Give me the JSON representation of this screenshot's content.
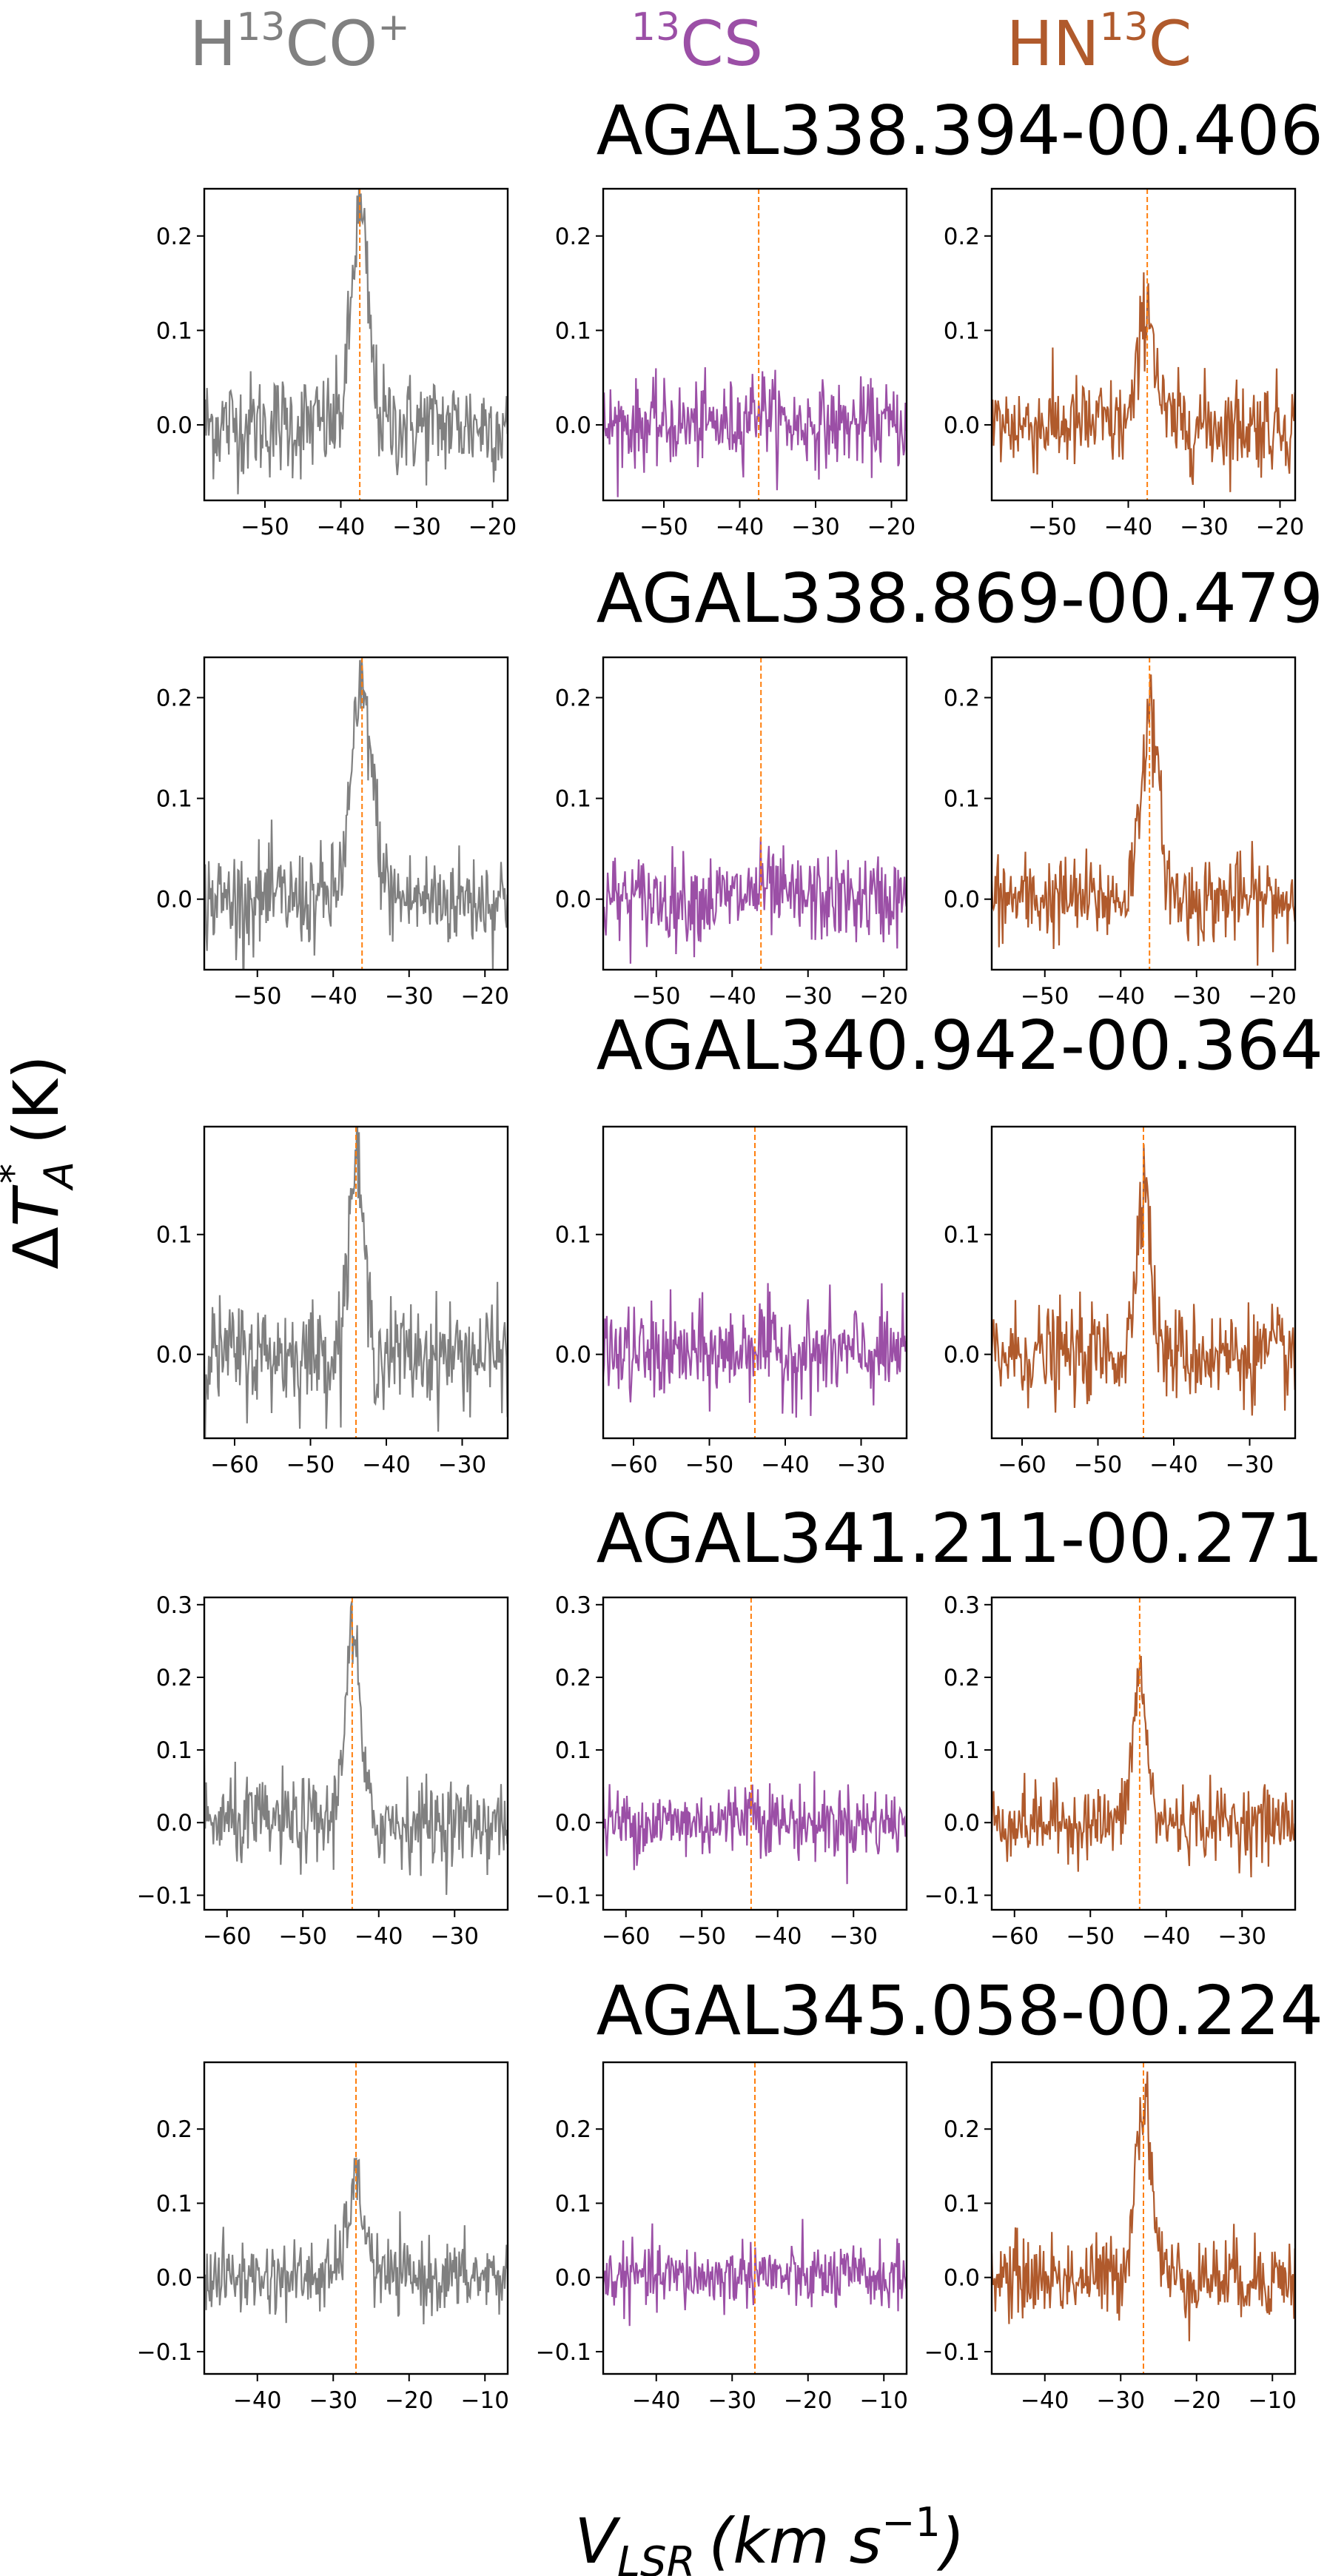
{
  "columns": [
    {
      "base": "H",
      "sup": "13",
      "rest": "CO",
      "sup2": "+",
      "color": "#808080"
    },
    {
      "base": "",
      "sup": "13",
      "rest": "CS",
      "sup2": "",
      "color": "#9b4fa6"
    },
    {
      "base": "HN",
      "sup": "13",
      "rest": "C",
      "sup2": "",
      "color": "#b05a2c"
    }
  ],
  "ylabel": {
    "delta": "Δ",
    "T": "T",
    "sub": "A",
    "sup": "*",
    "unit": "(K)"
  },
  "xlabel": {
    "V": "V",
    "sub": "LSR",
    "unit_open": "(km s",
    "sup": "−1",
    "unit_close": ")"
  },
  "vline_color": "#ff7f0e",
  "chart_data": [
    {
      "type": "line",
      "source": "AGAL338.394-00.406",
      "v_center": -37.5,
      "xlim": [
        -58,
        -18
      ],
      "ylim": [
        -0.08,
        0.25
      ],
      "xticks": [
        -50,
        -40,
        -30,
        -20
      ],
      "xtick_labels": [
        "−50",
        "−40",
        "−30",
        "−20"
      ],
      "yticks": [
        0.0,
        0.1,
        0.2
      ],
      "ytick_labels": [
        "0.0",
        "0.1",
        "0.2"
      ],
      "series": [
        {
          "peak": 0.22,
          "width": 1.1,
          "noise": 0.028,
          "color": "#808080"
        },
        {
          "peak": 0.02,
          "width": 1.5,
          "noise": 0.022,
          "color": "#9b4fa6"
        },
        {
          "peak": 0.13,
          "width": 1.0,
          "noise": 0.025,
          "color": "#b05a2c"
        }
      ]
    },
    {
      "type": "line",
      "source": "AGAL338.869-00.479",
      "v_center": -36.2,
      "xlim": [
        -57,
        -17
      ],
      "ylim": [
        -0.07,
        0.24
      ],
      "xticks": [
        -50,
        -40,
        -30,
        -20
      ],
      "xtick_labels": [
        "−50",
        "−40",
        "−30",
        "−20"
      ],
      "yticks": [
        0.0,
        0.1,
        0.2
      ],
      "ytick_labels": [
        "0.0",
        "0.1",
        "0.2"
      ],
      "series": [
        {
          "peak": 0.2,
          "width": 1.4,
          "noise": 0.025,
          "color": "#808080"
        },
        {
          "peak": 0.01,
          "width": 1.5,
          "noise": 0.022,
          "color": "#9b4fa6"
        },
        {
          "peak": 0.18,
          "width": 1.2,
          "noise": 0.022,
          "color": "#b05a2c"
        }
      ]
    },
    {
      "type": "line",
      "source": "AGAL340.942-00.364",
      "v_center": -44.0,
      "xlim": [
        -64,
        -24
      ],
      "ylim": [
        -0.07,
        0.19
      ],
      "xticks": [
        -60,
        -50,
        -40,
        -30
      ],
      "xtick_labels": [
        "−60",
        "−50",
        "−40",
        "−30"
      ],
      "yticks": [
        0.0,
        0.1
      ],
      "ytick_labels": [
        "0.0",
        "0.1"
      ],
      "series": [
        {
          "peak": 0.16,
          "width": 1.0,
          "noise": 0.022,
          "color": "#808080"
        },
        {
          "peak": 0.01,
          "width": 1.5,
          "noise": 0.02,
          "color": "#9b4fa6"
        },
        {
          "peak": 0.15,
          "width": 0.9,
          "noise": 0.02,
          "color": "#b05a2c"
        }
      ]
    },
    {
      "type": "line",
      "source": "AGAL341.211-00.271",
      "v_center": -43.5,
      "xlim": [
        -63,
        -23
      ],
      "ylim": [
        -0.12,
        0.31
      ],
      "xticks": [
        -60,
        -50,
        -40,
        -30
      ],
      "xtick_labels": [
        "−60",
        "−50",
        "−40",
        "−30"
      ],
      "yticks": [
        -0.1,
        0.0,
        0.1,
        0.2,
        0.3
      ],
      "ytick_labels": [
        "−0.1",
        "0.0",
        "0.1",
        "0.2",
        "0.3"
      ],
      "series": [
        {
          "peak": 0.26,
          "width": 1.0,
          "noise": 0.03,
          "color": "#808080"
        },
        {
          "peak": 0.02,
          "width": 1.5,
          "noise": 0.025,
          "color": "#9b4fa6"
        },
        {
          "peak": 0.2,
          "width": 0.9,
          "noise": 0.025,
          "color": "#b05a2c"
        }
      ]
    },
    {
      "type": "line",
      "source": "AGAL345.058-00.224",
      "v_center": -27.0,
      "xlim": [
        -47,
        -7
      ],
      "ylim": [
        -0.13,
        0.29
      ],
      "xticks": [
        -40,
        -30,
        -20,
        -10
      ],
      "xtick_labels": [
        "−40",
        "−30",
        "−20",
        "−10"
      ],
      "yticks": [
        -0.1,
        0.0,
        0.1,
        0.2
      ],
      "ytick_labels": [
        "−0.1",
        "0.0",
        "0.1",
        "0.2"
      ],
      "series": [
        {
          "peak": 0.12,
          "width": 1.2,
          "noise": 0.025,
          "color": "#808080"
        },
        {
          "peak": 0.01,
          "width": 1.5,
          "noise": 0.022,
          "color": "#9b4fa6"
        },
        {
          "peak": 0.24,
          "width": 1.1,
          "noise": 0.028,
          "color": "#b05a2c"
        }
      ]
    }
  ]
}
